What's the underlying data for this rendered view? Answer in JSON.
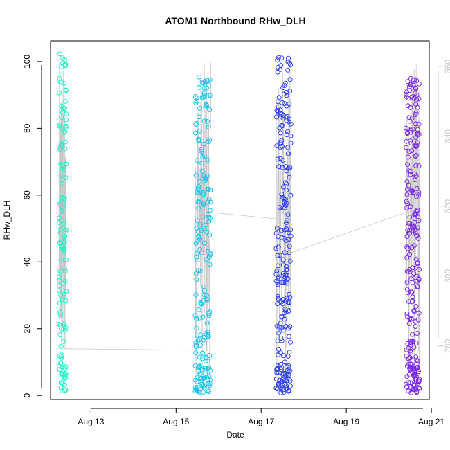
{
  "chart_data": {
    "type": "scatter",
    "title": "ATOM1 Northbound RHw_DLH",
    "xlabel": "Date",
    "ylabel": "RHw_DLH",
    "x_ticks": [
      "Aug 13",
      "Aug 15",
      "Aug 17",
      "Aug 19",
      "Aug 21"
    ],
    "x_tick_days": [
      13,
      15,
      17,
      19,
      21
    ],
    "xlim": [
      12.05,
      20.95
    ],
    "ylim": [
      -1.2,
      106.2
    ],
    "y_ticks": [
      0,
      20,
      40,
      60,
      80,
      100
    ],
    "y2_ticks": [
      280,
      300,
      320,
      340,
      360
    ],
    "y2lim": [
      264.7,
      367.3
    ],
    "secondary_line_color": "#c8c8c8",
    "clusters": [
      {
        "name": "Aug 12",
        "day_start": 12.25,
        "day_end": 12.42,
        "color": "#1ff5c8",
        "y_min": 1,
        "y_max": 103,
        "n": 140
      },
      {
        "name": "Aug 15",
        "day_start": 15.45,
        "day_end": 15.82,
        "color": "#17c2ee",
        "y_min": 0.8,
        "y_max": 97.5,
        "n": 210
      },
      {
        "name": "Aug 17",
        "day_start": 17.35,
        "day_end": 17.7,
        "color": "#2c3df0",
        "y_min": 0.8,
        "y_max": 101.5,
        "n": 230
      },
      {
        "name": "Aug 20",
        "day_start": 20.4,
        "day_end": 20.72,
        "color": "#7a26e8",
        "y_min": 0.8,
        "y_max": 95,
        "n": 240
      }
    ],
    "connector_points": [
      {
        "day": 12.4,
        "y2": 279.2
      },
      {
        "day": 15.47,
        "y2": 278.8
      },
      {
        "day": 15.82,
        "y2": 318.2
      },
      {
        "day": 17.35,
        "y2": 316.4
      },
      {
        "day": 17.7,
        "y2": 306.7
      },
      {
        "day": 20.4,
        "y2": 318.2
      }
    ]
  }
}
